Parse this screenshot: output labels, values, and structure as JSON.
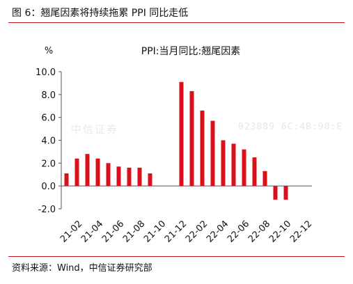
{
  "figure": {
    "title": "图 6：翘尾因素将持续拖累 PPI 同比走低",
    "source": "资料来源：Wind，中信证券研究部"
  },
  "watermark": {
    "left": "中信证券",
    "right": "023889  6C:4B:90:E"
  },
  "colors": {
    "bar": "#d8111c",
    "rule": "#c0151f",
    "axis": "#555555"
  },
  "chart_data": {
    "type": "bar",
    "title": "PPI:当月同比:翘尾因素",
    "ylabel": "%",
    "xlabel": "",
    "ylim": [
      -2.0,
      10.0
    ],
    "ytick_step": 2.0,
    "ytick_labels": [
      "-2.0",
      "0.0",
      "2.0",
      "4.0",
      "6.0",
      "8.0",
      "10.0"
    ],
    "grid": false,
    "legend": "none",
    "categories": [
      "21-01",
      "21-02",
      "21-03",
      "21-04",
      "21-05",
      "21-06",
      "21-07",
      "21-08",
      "21-09",
      "21-10",
      "21-11",
      "21-12",
      "22-01",
      "22-02",
      "22-03",
      "22-04",
      "22-05",
      "22-06",
      "22-07",
      "22-08",
      "22-09",
      "22-10",
      "22-11",
      "22-12"
    ],
    "shown_tick_labels": [
      "21-02",
      "21-04",
      "21-06",
      "21-08",
      "21-10",
      "21-12",
      "22-02",
      "22-04",
      "22-06",
      "22-08",
      "22-10",
      "22-12"
    ],
    "values": [
      1.1,
      2.4,
      2.8,
      2.4,
      2.0,
      1.7,
      1.6,
      1.6,
      1.1,
      null,
      null,
      9.1,
      8.3,
      6.6,
      5.7,
      4.0,
      3.7,
      3.2,
      2.5,
      1.3,
      -1.2,
      -1.2,
      null,
      null
    ]
  }
}
